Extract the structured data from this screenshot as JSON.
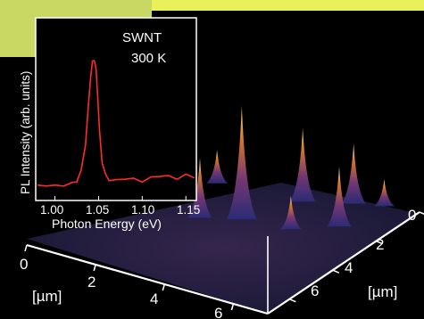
{
  "chart_data": [
    {
      "type": "line",
      "title": "SWNT",
      "subtitle": "300 K",
      "xlabel": "Photon Energy (eV)",
      "ylabel": "PL Intensity (arb. units)",
      "xlim": [
        0.98,
        1.16
      ],
      "ylim": [
        0,
        1.0
      ],
      "x_ticks": [
        "1.00",
        "1.05",
        "1.10",
        "1.15"
      ],
      "series": [
        {
          "x": [
            0.98,
            0.99,
            1.0,
            1.01,
            1.02,
            1.025,
            1.03,
            1.035,
            1.038,
            1.041,
            1.043,
            1.045,
            1.047,
            1.049,
            1.051,
            1.054,
            1.058,
            1.062,
            1.07,
            1.08,
            1.09,
            1.1,
            1.11,
            1.12,
            1.13,
            1.14,
            1.15,
            1.16
          ],
          "y": [
            0.04,
            0.05,
            0.04,
            0.05,
            0.06,
            0.08,
            0.15,
            0.35,
            0.6,
            0.85,
            0.95,
            0.97,
            0.9,
            0.7,
            0.45,
            0.22,
            0.12,
            0.09,
            0.08,
            0.1,
            0.09,
            0.08,
            0.1,
            0.12,
            0.11,
            0.1,
            0.12,
            0.11
          ],
          "color": "#ff2b2b"
        }
      ]
    },
    {
      "type": "area",
      "title": "",
      "xlabel": "[µm]",
      "ylabel": "[µm]",
      "x_ticks": [
        "0",
        "2",
        "4",
        "6"
      ],
      "y_ticks": [
        "0",
        "2",
        "4",
        "6"
      ],
      "peaks": [
        {
          "x": 3.6,
          "y": 1.0,
          "height": 0.85
        },
        {
          "x": 2.7,
          "y": 0.5,
          "height": 0.45
        },
        {
          "x": 4.3,
          "y": 2.7,
          "height": 0.55
        },
        {
          "x": 5.4,
          "y": 3.3,
          "height": 0.45
        },
        {
          "x": 5.8,
          "y": 2.0,
          "height": 0.45
        },
        {
          "x": 2.0,
          "y": 2.4,
          "height": 0.25
        },
        {
          "x": 4.9,
          "y": 1.2,
          "height": 0.25
        },
        {
          "x": 6.1,
          "y": 3.6,
          "height": 0.2
        }
      ],
      "colors": {
        "low": "#2a2c78",
        "mid": "#8a3a6a",
        "high": "#f0c020",
        "peak_top": "#ffe890"
      }
    }
  ]
}
